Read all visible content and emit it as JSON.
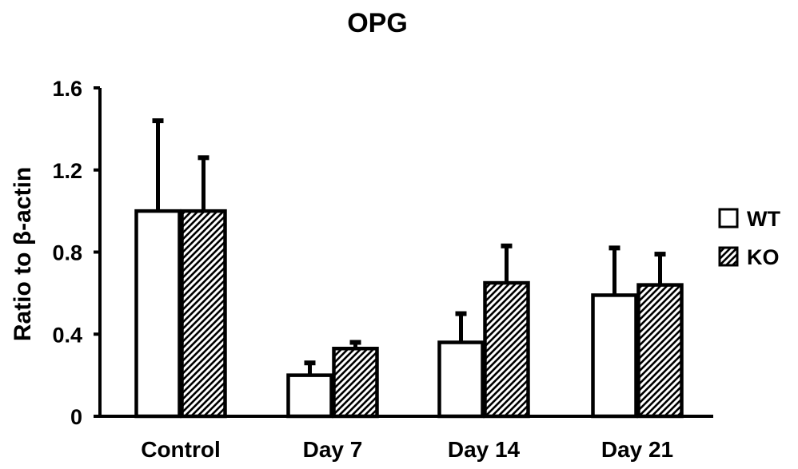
{
  "chart_data": {
    "type": "bar",
    "title": "OPG",
    "xlabel": "",
    "ylabel": "Ratio to β-actin",
    "categories": [
      "Control",
      "Day 7",
      "Day 14",
      "Day 21"
    ],
    "ylim": [
      0,
      1.6
    ],
    "yticks": [
      0,
      0.4,
      0.8,
      1.2,
      1.6
    ],
    "ytick_labels": [
      "0",
      "0.4",
      "0.8",
      "1.2",
      "1.6"
    ],
    "grid": false,
    "legend_position": "right",
    "error_bars": "upper",
    "series": [
      {
        "name": "WT",
        "fill": "open",
        "values": [
          1.0,
          0.2,
          0.36,
          0.59
        ],
        "errors": [
          0.44,
          0.06,
          0.14,
          0.23
        ]
      },
      {
        "name": "KO",
        "fill": "hatched",
        "values": [
          1.0,
          0.33,
          0.65,
          0.64
        ],
        "errors": [
          0.26,
          0.03,
          0.18,
          0.15
        ]
      }
    ],
    "colors": {
      "stroke": "#000000",
      "background": "#ffffff"
    }
  }
}
